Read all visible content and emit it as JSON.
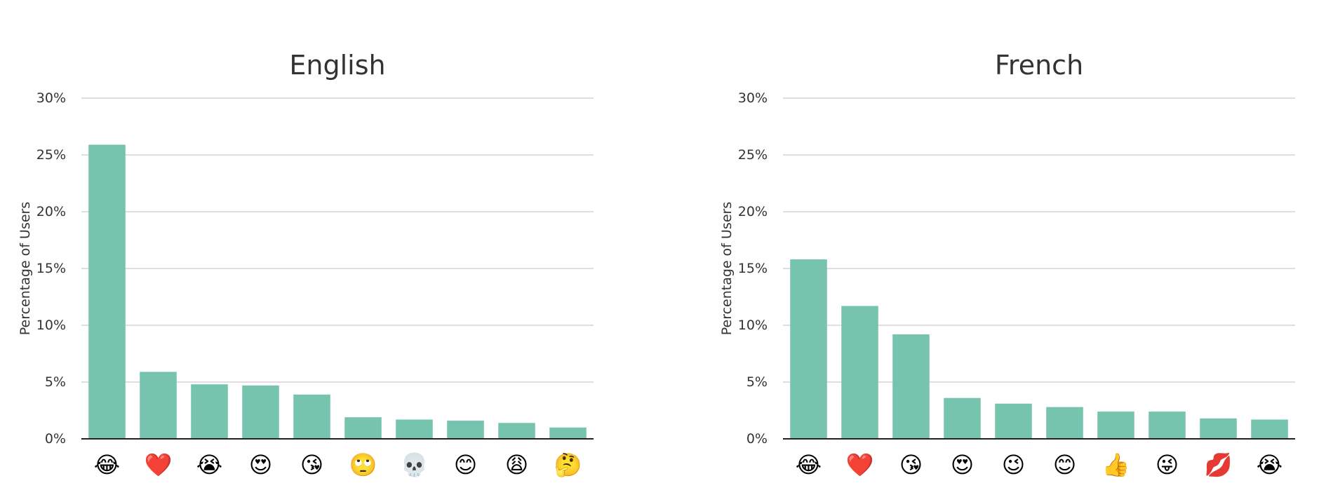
{
  "chart_data": [
    {
      "type": "bar",
      "title": "English",
      "ylabel": "Percentage of Users",
      "ylim": [
        0,
        30
      ],
      "yticks": [
        "0%",
        "5%",
        "10%",
        "15%",
        "20%",
        "25%",
        "30%"
      ],
      "grid": true,
      "color": "#76c4ae",
      "categories": [
        "😂",
        "❤️",
        "😭",
        "😍",
        "😘",
        "🙄",
        "💀",
        "😊",
        "😩",
        "🤔"
      ],
      "values": [
        25.9,
        5.9,
        4.8,
        4.7,
        3.9,
        1.9,
        1.7,
        1.6,
        1.4,
        1.0
      ]
    },
    {
      "type": "bar",
      "title": "French",
      "ylabel": "Percentage of Users",
      "ylim": [
        0,
        30
      ],
      "yticks": [
        "0%",
        "5%",
        "10%",
        "15%",
        "20%",
        "25%",
        "30%"
      ],
      "grid": true,
      "color": "#76c4ae",
      "categories": [
        "😂",
        "❤️",
        "😘",
        "😍",
        "😉",
        "😊",
        "👍",
        "😜",
        "💋",
        "😭"
      ],
      "values": [
        15.8,
        11.7,
        9.2,
        3.6,
        3.1,
        2.8,
        2.4,
        2.4,
        1.8,
        1.7
      ]
    }
  ]
}
